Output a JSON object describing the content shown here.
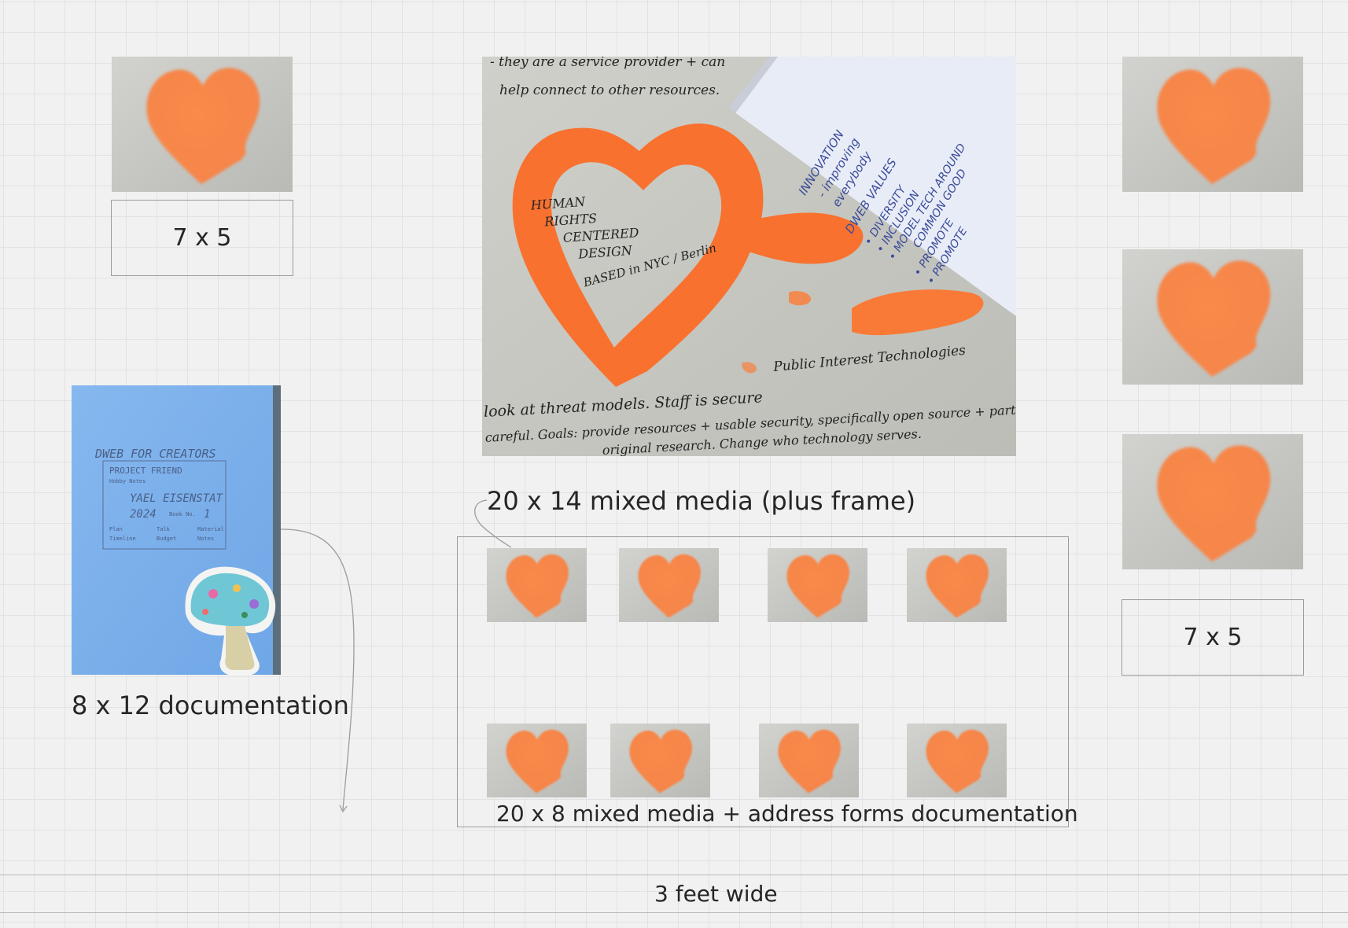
{
  "canvas": {
    "labels": {
      "top_left_size": "7 x 5",
      "right_size": "7 x 5",
      "main_caption": "20 x 14 mixed media (plus frame)",
      "doc_caption": "8 x 12 documentation",
      "grid_caption": "20  x 8 mixed media + address forms documentation",
      "wall_width": "3 feet wide"
    },
    "main_note": {
      "heart_text": [
        "HUMAN",
        "RIGHTS",
        "CENTERED",
        "DESIGN"
      ],
      "based_text": "BASED in NYC / Berlin",
      "top_lines": [
        "- they are a service provider + can",
        "help connect to other resources."
      ],
      "pit_text": "Public Interest Technologies",
      "bottom_lines": [
        "look at threat models. Staff is secure",
        "careful. Goals: provide resources + usable security, specifically open source + participate",
        "original research. Change who technology serves."
      ],
      "notebook_lines": [
        "INNOVATION",
        "- improving",
        "everybody",
        "DWEB VALUES",
        "• DIVERSITY",
        "• INCLUSION",
        "• MODEL TECH AROUND",
        "COMMON GOOD",
        "• PROMOTE",
        "• PROMOTE"
      ]
    },
    "doc_card": {
      "title": "DWEB FOR CREATORS",
      "subtitle": "PROJECT FRIEND",
      "sub2": "Hobby Notes",
      "name_value": "YAEL EISENSTAT",
      "year_value": "2024",
      "book_label": "Book No.",
      "book_value": "1",
      "fields": [
        "Plan",
        "Talk",
        "Material",
        "Timeline",
        "Budget",
        "Notes"
      ]
    },
    "colors": {
      "heart_orange": "#f7884a",
      "paper_gray": "#c9cac6",
      "doc_blue": "#7fb3ec"
    }
  }
}
